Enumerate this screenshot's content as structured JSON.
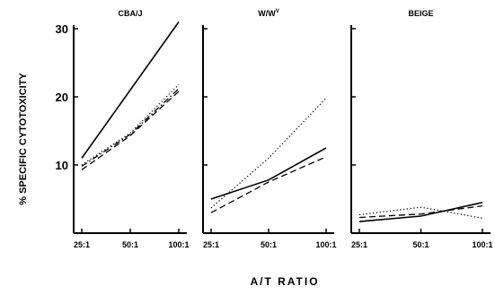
{
  "chart_data": {
    "type": "line",
    "ylabel": "% SPECIFIC CYTOTOXICITY",
    "xlabel": "A/T RATIO",
    "categories": [
      "25:1",
      "50:1",
      "100:1"
    ],
    "ylim": [
      0,
      30
    ],
    "yticks": [
      10,
      20,
      30
    ],
    "line_styles": [
      "solid",
      "dashed",
      "dotted",
      "dash-dot"
    ],
    "panels": [
      {
        "title": "CBA/J",
        "series": [
          {
            "style": "solid",
            "values": [
              11,
              21,
              31
            ]
          },
          {
            "style": "dashed",
            "values": [
              9.3,
              14.3,
              20.8
            ]
          },
          {
            "style": "dotted",
            "values": [
              10.0,
              14.7,
              21.8
            ]
          },
          {
            "style": "dash-dot",
            "values": [
              9.8,
              14.5,
              21.2
            ]
          }
        ]
      },
      {
        "title": "W/W",
        "title_sup": "V",
        "series": [
          {
            "style": "solid",
            "values": [
              5.0,
              7.8,
              12.5
            ]
          },
          {
            "style": "dashed",
            "values": [
              3.0,
              7.5,
              11.2
            ]
          },
          {
            "style": "dotted",
            "values": [
              3.7,
              11.0,
              19.8
            ]
          }
        ]
      },
      {
        "title": "BEIGE",
        "series": [
          {
            "style": "solid",
            "values": [
              1.7,
              2.5,
              4.5
            ]
          },
          {
            "style": "dashed",
            "values": [
              2.3,
              2.8,
              4.0
            ]
          },
          {
            "style": "dotted",
            "values": [
              2.7,
              3.8,
              2.2
            ]
          }
        ]
      }
    ]
  }
}
